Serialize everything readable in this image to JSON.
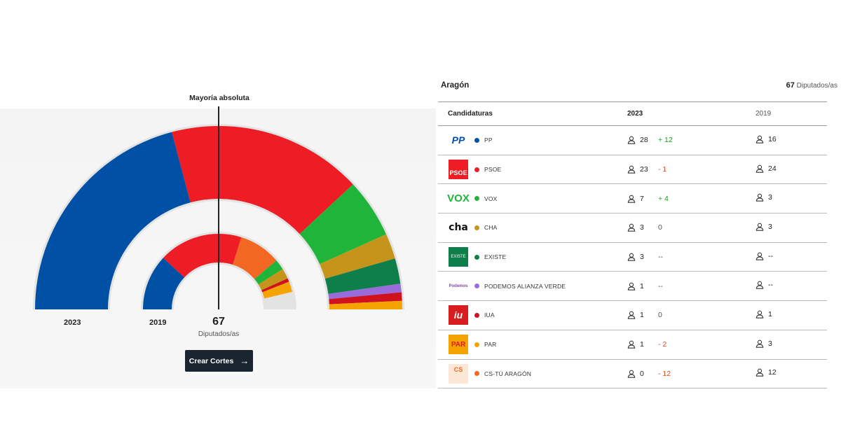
{
  "chart_data": {
    "type": "parliament",
    "majority_label": "Mayoría absoluta",
    "total_seats": "67",
    "total_unit": "Diputados/as",
    "rings": [
      {
        "label": "2023",
        "seats": [
          28,
          23,
          7,
          3,
          3,
          1,
          1,
          1,
          0
        ]
      },
      {
        "label": "2019",
        "seats": [
          16,
          24,
          3,
          3,
          0,
          0,
          1,
          3,
          12
        ]
      }
    ],
    "order_inner": [
      0,
      1,
      8,
      2,
      3,
      6,
      7,
      4,
      5
    ]
  },
  "button": {
    "label": "Crear Cortes",
    "icon": "arrow-right-icon"
  },
  "table": {
    "region": "Aragón",
    "total_number": "67",
    "total_unit": "Diputados/as",
    "headers": {
      "name": "Candidaturas",
      "y2023": "2023",
      "y2019": "2019"
    },
    "rows": [
      {
        "name": "PP",
        "color": "#0050a5",
        "s2023": "28",
        "diff": "+ 12",
        "trend": "up",
        "s2019": "16",
        "logo": "PP",
        "logo_color": "#0050a5"
      },
      {
        "name": "PSOE",
        "color": "#ee1c25",
        "s2023": "23",
        "diff": "- 1",
        "trend": "down",
        "s2019": "24",
        "logo": "PSOE",
        "logo_color": "#ee1c25"
      },
      {
        "name": "VOX",
        "color": "#1fb53a",
        "s2023": "7",
        "diff": "+ 4",
        "trend": "up",
        "s2019": "3",
        "logo": "VOX",
        "logo_color": "#1fb53a"
      },
      {
        "name": "CHA",
        "color": "#c4951a",
        "s2023": "3",
        "diff": "0",
        "trend": "neutral",
        "s2019": "3",
        "logo": "cha",
        "logo_color": "#111111"
      },
      {
        "name": "EXISTE",
        "color": "#0e7f4a",
        "s2023": "3",
        "diff": "--",
        "trend": "neutral",
        "s2019": "--",
        "logo": "EXISTE",
        "logo_color": "#0e7f4a"
      },
      {
        "name": "PODEMOS ALIANZA VERDE",
        "color": "#9a6cdb",
        "s2023": "1",
        "diff": "--",
        "trend": "neutral",
        "s2019": "--",
        "logo": "Podemos",
        "logo_color": "#8e44ad"
      },
      {
        "name": "IUA",
        "color": "#d0111e",
        "s2023": "1",
        "diff": "0",
        "trend": "neutral",
        "s2019": "1",
        "logo": "iu",
        "logo_color": "#d81e1e"
      },
      {
        "name": "PAR",
        "color": "#f5a300",
        "s2023": "1",
        "diff": "- 2",
        "trend": "down",
        "s2019": "3",
        "logo": "PAR",
        "logo_color": "#f5a300"
      },
      {
        "name": "CS-TÚ ARAGÓN",
        "color": "#f26722",
        "s2023": "0",
        "diff": "- 12",
        "trend": "down",
        "s2019": "12",
        "logo": "CS",
        "logo_color": "#f26722"
      }
    ]
  }
}
